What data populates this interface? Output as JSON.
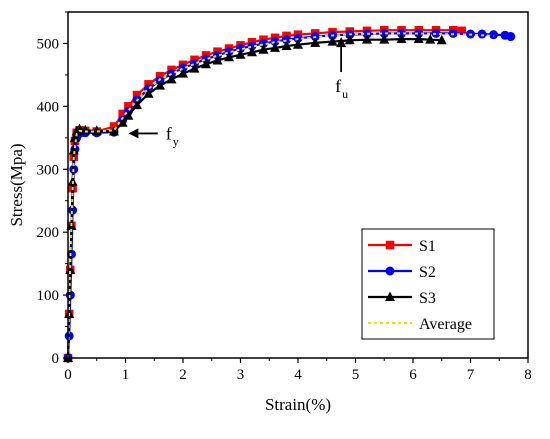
{
  "chart_data": {
    "type": "line",
    "xlabel": "Strain(%)",
    "ylabel": "Stress(Mpa)",
    "xlim": [
      0,
      8
    ],
    "ylim": [
      0,
      550
    ],
    "xticks": [
      "0",
      "1",
      "2",
      "3",
      "4",
      "5",
      "6",
      "7",
      "8"
    ],
    "yticks": [
      "0",
      "100",
      "200",
      "300",
      "400",
      "500"
    ],
    "grid": false,
    "legend_position": "bottom-right",
    "series": [
      {
        "name": "S1",
        "color": "#ff0000",
        "marker": "square",
        "x": [
          0,
          0.02,
          0.04,
          0.06,
          0.08,
          0.1,
          0.12,
          0.15,
          0.2,
          0.3,
          0.5,
          0.8,
          0.95,
          1.05,
          1.2,
          1.4,
          1.6,
          1.8,
          2.0,
          2.2,
          2.4,
          2.6,
          2.8,
          3.0,
          3.2,
          3.4,
          3.6,
          3.8,
          4.0,
          4.3,
          4.6,
          4.9,
          5.2,
          5.5,
          5.8,
          6.1,
          6.4,
          6.7,
          6.85
        ],
        "y": [
          0,
          70,
          140,
          210,
          270,
          320,
          345,
          358,
          362,
          361,
          360,
          368,
          388,
          400,
          418,
          435,
          448,
          458,
          466,
          474,
          481,
          487,
          492,
          497,
          502,
          506,
          509,
          512,
          514,
          516,
          518,
          519,
          520,
          521,
          521,
          521,
          521,
          521,
          520
        ]
      },
      {
        "name": "S2",
        "color": "#0000ff",
        "marker": "circle",
        "x": [
          0,
          0.02,
          0.04,
          0.06,
          0.08,
          0.1,
          0.12,
          0.15,
          0.2,
          0.3,
          0.5,
          0.8,
          0.95,
          1.05,
          1.2,
          1.4,
          1.6,
          1.8,
          2.0,
          2.2,
          2.4,
          2.6,
          2.8,
          3.0,
          3.2,
          3.4,
          3.6,
          3.8,
          4.0,
          4.3,
          4.6,
          4.9,
          5.2,
          5.5,
          5.8,
          6.1,
          6.4,
          6.7,
          7.0,
          7.2,
          7.4,
          7.6,
          7.7
        ],
        "y": [
          0,
          35,
          100,
          165,
          235,
          300,
          332,
          350,
          357,
          358,
          358,
          359,
          378,
          392,
          410,
          428,
          441,
          452,
          461,
          468,
          475,
          481,
          487,
          492,
          496,
          500,
          503,
          506,
          508,
          511,
          513,
          514,
          515,
          516,
          516,
          516,
          516,
          516,
          515,
          515,
          514,
          513,
          511
        ]
      },
      {
        "name": "S3",
        "color": "#000000",
        "marker": "triangle",
        "x": [
          0,
          0.02,
          0.04,
          0.06,
          0.08,
          0.1,
          0.12,
          0.15,
          0.2,
          0.3,
          0.5,
          0.8,
          0.95,
          1.05,
          1.2,
          1.4,
          1.6,
          1.8,
          2.0,
          2.2,
          2.4,
          2.6,
          2.8,
          3.0,
          3.2,
          3.4,
          3.6,
          3.8,
          4.0,
          4.3,
          4.6,
          4.9,
          5.2,
          5.5,
          5.8,
          6.1,
          6.3,
          6.5
        ],
        "y": [
          0,
          70,
          140,
          210,
          280,
          330,
          350,
          360,
          364,
          362,
          361,
          360,
          374,
          385,
          402,
          420,
          433,
          443,
          452,
          460,
          467,
          473,
          478,
          482,
          486,
          490,
          493,
          496,
          498,
          501,
          503,
          505,
          506,
          506,
          507,
          507,
          506,
          505
        ]
      },
      {
        "name": "Average",
        "color": "#e6e600",
        "marker": "none",
        "dashed": true,
        "x": [
          0,
          0.03,
          0.06,
          0.1,
          0.15,
          0.2,
          0.3,
          0.5,
          0.8,
          1.0,
          1.3,
          1.6,
          2.0,
          2.4,
          2.8,
          3.2,
          3.6,
          4.0,
          4.5,
          5.0,
          5.5,
          6.0,
          6.5,
          7.0,
          7.4
        ],
        "y": [
          0,
          120,
          215,
          320,
          356,
          361,
          360,
          360,
          362,
          388,
          420,
          443,
          460,
          475,
          486,
          495,
          502,
          507,
          512,
          515,
          516,
          516,
          515,
          514,
          512
        ]
      }
    ],
    "annotations": [
      {
        "text": "f",
        "sub": "y",
        "x": 1.7,
        "y": 357,
        "arrow_to": [
          1.05,
          357
        ],
        "direction": "left"
      },
      {
        "text": "f",
        "sub": "u",
        "x": 4.75,
        "y": 445,
        "arrow_to": [
          4.75,
          510
        ],
        "direction": "up"
      }
    ]
  }
}
